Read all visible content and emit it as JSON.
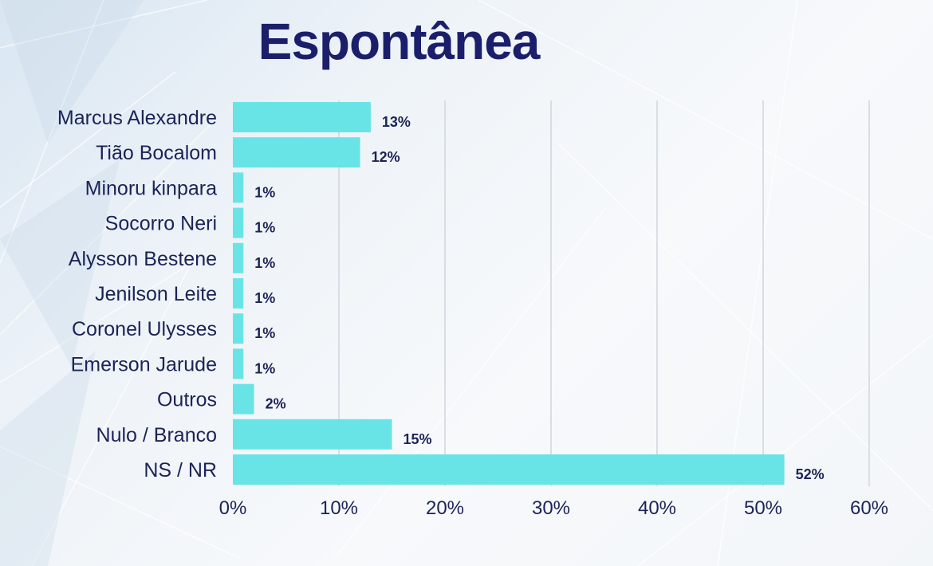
{
  "chart_data": {
    "type": "bar",
    "orientation": "horizontal",
    "title": "Espontânea",
    "categories": [
      "Marcus Alexandre",
      "Tião Bocalom",
      "Minoru kinpara",
      "Socorro Neri",
      "Alysson Bestene",
      "Jenilson Leite",
      "Coronel Ulysses",
      "Emerson Jarude",
      "Outros",
      "Nulo / Branco",
      "NS / NR"
    ],
    "values": [
      13,
      12,
      1,
      1,
      1,
      1,
      1,
      1,
      2,
      15,
      52
    ],
    "value_labels": [
      "13%",
      "12%",
      "1%",
      "1%",
      "1%",
      "1%",
      "1%",
      "1%",
      "2%",
      "15%",
      "52%"
    ],
    "xlim": [
      0,
      60
    ],
    "x_ticks": [
      "0%",
      "10%",
      "20%",
      "30%",
      "40%",
      "50%",
      "60%"
    ],
    "grid": "vertical",
    "bar_color": "#69e4e6",
    "text_color": "#1c2357",
    "title_color": "#1b1f6b"
  }
}
